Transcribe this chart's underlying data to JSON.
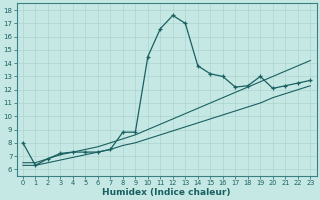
{
  "xlabel": "Humidex (Indice chaleur)",
  "ylabel": "",
  "bg_color": "#c5e8e5",
  "line_color": "#1a6060",
  "xlim": [
    -0.5,
    23.5
  ],
  "ylim": [
    5.5,
    18.5
  ],
  "yticks": [
    6,
    7,
    8,
    9,
    10,
    11,
    12,
    13,
    14,
    15,
    16,
    17,
    18
  ],
  "xticks": [
    0,
    1,
    2,
    3,
    4,
    5,
    6,
    7,
    8,
    9,
    10,
    11,
    12,
    13,
    14,
    15,
    16,
    17,
    18,
    19,
    20,
    21,
    22,
    23
  ],
  "series1_x": [
    0,
    1,
    2,
    3,
    4,
    5,
    6,
    7,
    8,
    9,
    10,
    11,
    12,
    13,
    14,
    15,
    16,
    17,
    18,
    19,
    20,
    21,
    22,
    23
  ],
  "series1_y": [
    8.0,
    6.3,
    6.8,
    7.2,
    7.3,
    7.3,
    7.3,
    7.5,
    8.8,
    8.8,
    14.5,
    16.6,
    17.6,
    17.0,
    13.8,
    13.2,
    13.0,
    12.2,
    12.3,
    13.0,
    12.1,
    12.3,
    12.5,
    12.7
  ],
  "series2_x": [
    0,
    1,
    2,
    3,
    4,
    5,
    6,
    7,
    8,
    9,
    10,
    11,
    12,
    13,
    14,
    15,
    16,
    17,
    18,
    19,
    20,
    21,
    22,
    23
  ],
  "series2_y": [
    6.3,
    6.3,
    6.5,
    6.7,
    6.9,
    7.1,
    7.3,
    7.5,
    7.8,
    8.0,
    8.3,
    8.6,
    8.9,
    9.2,
    9.5,
    9.8,
    10.1,
    10.4,
    10.7,
    11.0,
    11.4,
    11.7,
    12.0,
    12.3
  ],
  "series3_x": [
    0,
    1,
    2,
    3,
    4,
    5,
    6,
    7,
    8,
    9,
    10,
    11,
    12,
    13,
    14,
    15,
    16,
    17,
    18,
    19,
    20,
    21,
    22,
    23
  ],
  "series3_y": [
    6.5,
    6.5,
    6.8,
    7.1,
    7.3,
    7.5,
    7.7,
    8.0,
    8.3,
    8.6,
    9.0,
    9.4,
    9.8,
    10.2,
    10.6,
    11.0,
    11.4,
    11.8,
    12.2,
    12.6,
    13.0,
    13.4,
    13.8,
    14.2
  ],
  "grid_color": "#aed4d0",
  "font_color": "#1a6060",
  "spine_color": "#3a8080"
}
